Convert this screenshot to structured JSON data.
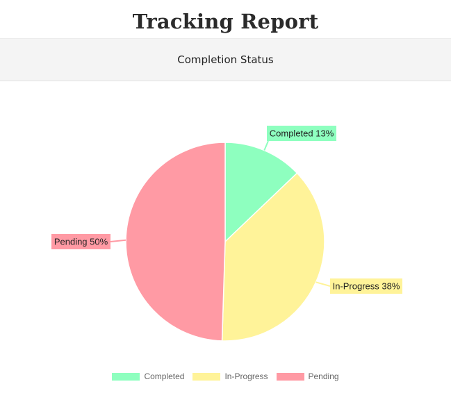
{
  "page": {
    "title": "Tracking Report",
    "card_header": "Completion Status"
  },
  "chart_data": {
    "type": "pie",
    "title": "",
    "slices": [
      {
        "name": "Completed",
        "value": 13,
        "label": "Completed 13%",
        "color": "#8effbf"
      },
      {
        "name": "In-Progress",
        "value": 38,
        "label": "In-Progress 38%",
        "color": "#fff399"
      },
      {
        "name": "Pending",
        "value": 50,
        "label": "Pending 50%",
        "color": "#ff9aa4"
      }
    ],
    "legend": {
      "position": "bottom",
      "entries": [
        "Completed",
        "In-Progress",
        "Pending"
      ]
    }
  }
}
